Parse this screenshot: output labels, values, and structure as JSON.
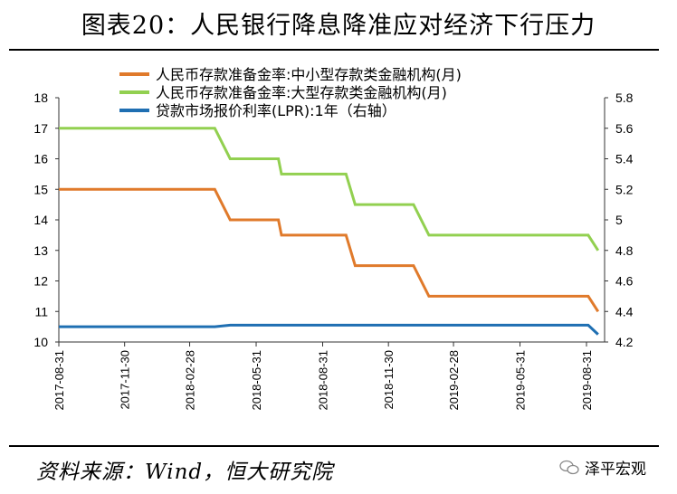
{
  "title": "图表20：人民银行降息降准应对经济下行压力",
  "source": "资料来源：Wind，恒大研究院",
  "watermark": "泽平宏观",
  "chart_data": {
    "type": "line",
    "x": [
      "2017-08-31",
      "2017-09-30",
      "2017-10-31",
      "2017-11-30",
      "2017-12-31",
      "2018-01-31",
      "2018-02-28",
      "2018-03-31",
      "2018-04-25",
      "2018-04-30",
      "2018-05-31",
      "2018-06-30",
      "2018-07-05",
      "2018-07-31",
      "2018-08-31",
      "2018-09-30",
      "2018-10-15",
      "2018-10-31",
      "2018-11-30",
      "2018-12-31",
      "2019-01-25",
      "2019-01-31",
      "2019-02-28",
      "2019-03-31",
      "2019-04-30",
      "2019-05-31",
      "2019-06-30",
      "2019-07-31",
      "2019-08-20",
      "2019-08-31",
      "2019-09-16"
    ],
    "xticks": [
      "2017-08-31",
      "2017-11-30",
      "2018-02-28",
      "2018-05-31",
      "2018-08-31",
      "2018-11-30",
      "2019-02-28",
      "2019-05-31",
      "2019-08-31"
    ],
    "ylim": [
      10,
      18
    ],
    "yticks": [
      10,
      11,
      12,
      13,
      14,
      15,
      16,
      17,
      18
    ],
    "y2lim": [
      4.2,
      5.8
    ],
    "y2ticks": [
      "4.2",
      "4.4",
      "4.6",
      "4.8",
      "5",
      "5.2",
      "5.4",
      "5.6",
      "5.8"
    ],
    "series": [
      {
        "name": "人民币存款准备金率:中小型存款类金融机构(月)",
        "axis": "left",
        "color": "#E07A2B",
        "values": [
          15,
          15,
          15,
          15,
          15,
          15,
          15,
          15,
          14,
          14,
          14,
          14,
          13.5,
          13.5,
          13.5,
          13.5,
          12.5,
          12.5,
          12.5,
          12.5,
          11.5,
          11.5,
          11.5,
          11.5,
          11.5,
          11.5,
          11.5,
          11.5,
          11.5,
          11.5,
          11
        ]
      },
      {
        "name": "人民币存款准备金率:大型存款类金融机构(月)",
        "axis": "left",
        "color": "#92D050",
        "values": [
          17,
          17,
          17,
          17,
          17,
          17,
          17,
          17,
          16,
          16,
          16,
          16,
          15.5,
          15.5,
          15.5,
          15.5,
          14.5,
          14.5,
          14.5,
          14.5,
          13.5,
          13.5,
          13.5,
          13.5,
          13.5,
          13.5,
          13.5,
          13.5,
          13.5,
          13.5,
          13
        ]
      },
      {
        "name": "贷款市场报价利率(LPR):1年（右轴）",
        "axis": "right",
        "color": "#1F6FB2",
        "values": [
          4.3,
          4.3,
          4.3,
          4.3,
          4.3,
          4.3,
          4.3,
          4.3,
          4.31,
          4.31,
          4.31,
          4.31,
          4.31,
          4.31,
          4.31,
          4.31,
          4.31,
          4.31,
          4.31,
          4.31,
          4.31,
          4.31,
          4.31,
          4.31,
          4.31,
          4.31,
          4.31,
          4.31,
          4.31,
          4.31,
          4.25
        ]
      }
    ],
    "legend": "top"
  }
}
